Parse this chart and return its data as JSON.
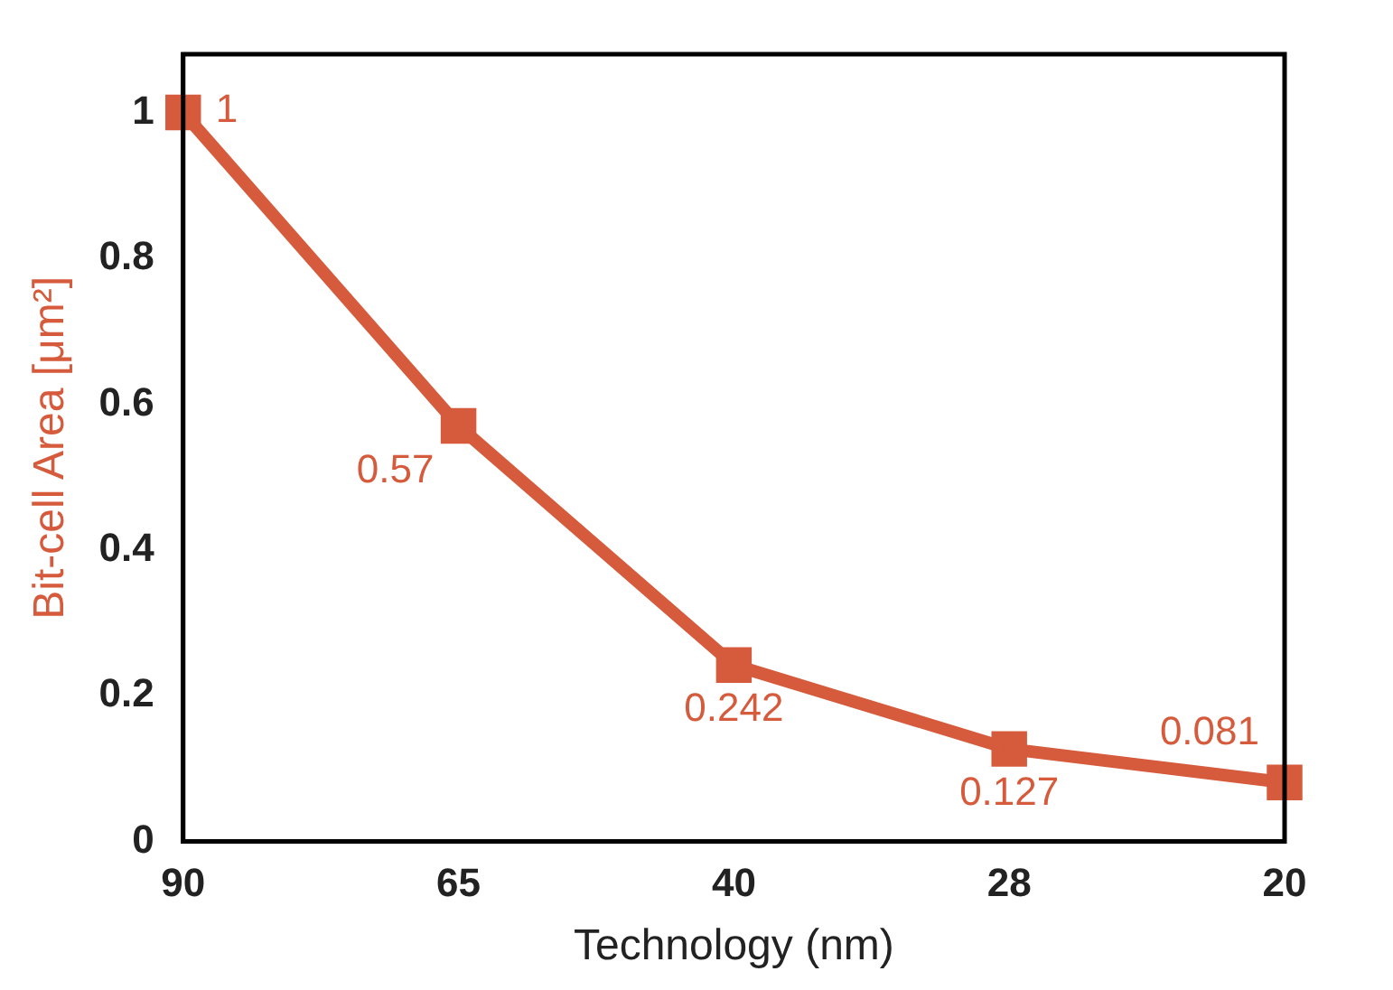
{
  "chart_data": {
    "type": "line",
    "xlabel": "Technology (nm)",
    "ylabel": "Bit-cell Area [μm²]",
    "categories": [
      "90",
      "65",
      "40",
      "28",
      "20"
    ],
    "series": [
      {
        "color": "#d65a3c",
        "values": [
          1,
          0.57,
          0.242,
          0.127,
          0.081
        ]
      }
    ],
    "ylim": [
      0,
      1.08
    ],
    "yticks": [
      0,
      0.2,
      0.4,
      0.6,
      0.8,
      1
    ],
    "grid": false,
    "legend": false,
    "marker": "square",
    "line_style": "solid",
    "data_labels": true
  }
}
